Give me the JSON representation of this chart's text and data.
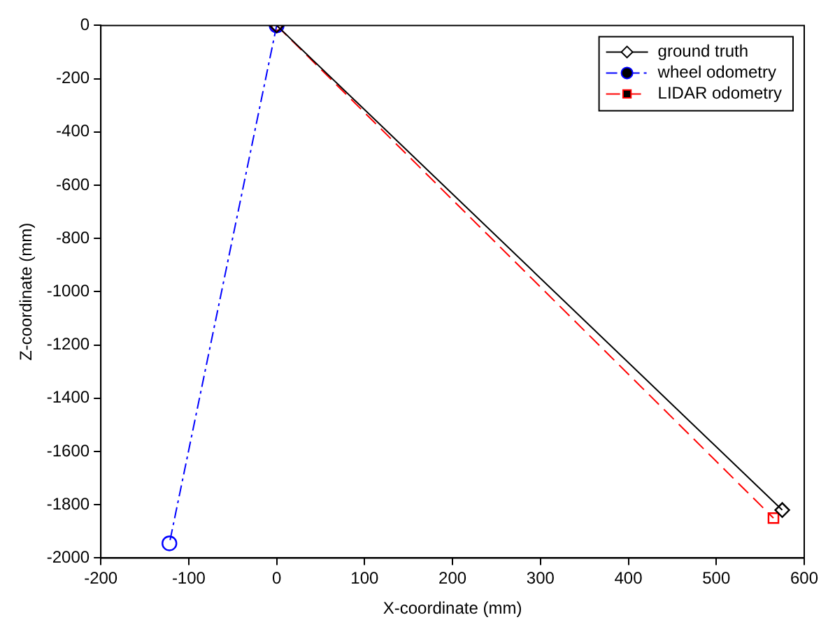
{
  "chart_data": {
    "type": "line",
    "xlabel": "X-coordinate (mm)",
    "ylabel": "Z-coordinate (mm)",
    "xlim": [
      -200,
      600
    ],
    "xticks": [
      -200,
      -100,
      0,
      100,
      200,
      300,
      400,
      500,
      600
    ],
    "ylim": [
      -2000,
      0
    ],
    "yticks": [
      -2000,
      -1800,
      -1600,
      -1400,
      -1200,
      -1000,
      -800,
      -600,
      -400,
      -200,
      0
    ],
    "grid": false,
    "legend": "top right",
    "series": [
      {
        "name": "ground truth",
        "color": "#000000",
        "x": [
          0,
          575
        ],
        "values": [
          0,
          -1820
        ],
        "marker": "diamond",
        "line_style": "solid"
      },
      {
        "name": "wheel odometry",
        "color": "#0000ff",
        "x": [
          0,
          -122
        ],
        "values": [
          0,
          -1945
        ],
        "marker": "circle",
        "line_style": "dashdot"
      },
      {
        "name": "LIDAR odometry",
        "color": "#ff0000",
        "x": [
          0,
          565
        ],
        "values": [
          0,
          -1850
        ],
        "marker": "square",
        "line_style": "dashed"
      }
    ]
  }
}
